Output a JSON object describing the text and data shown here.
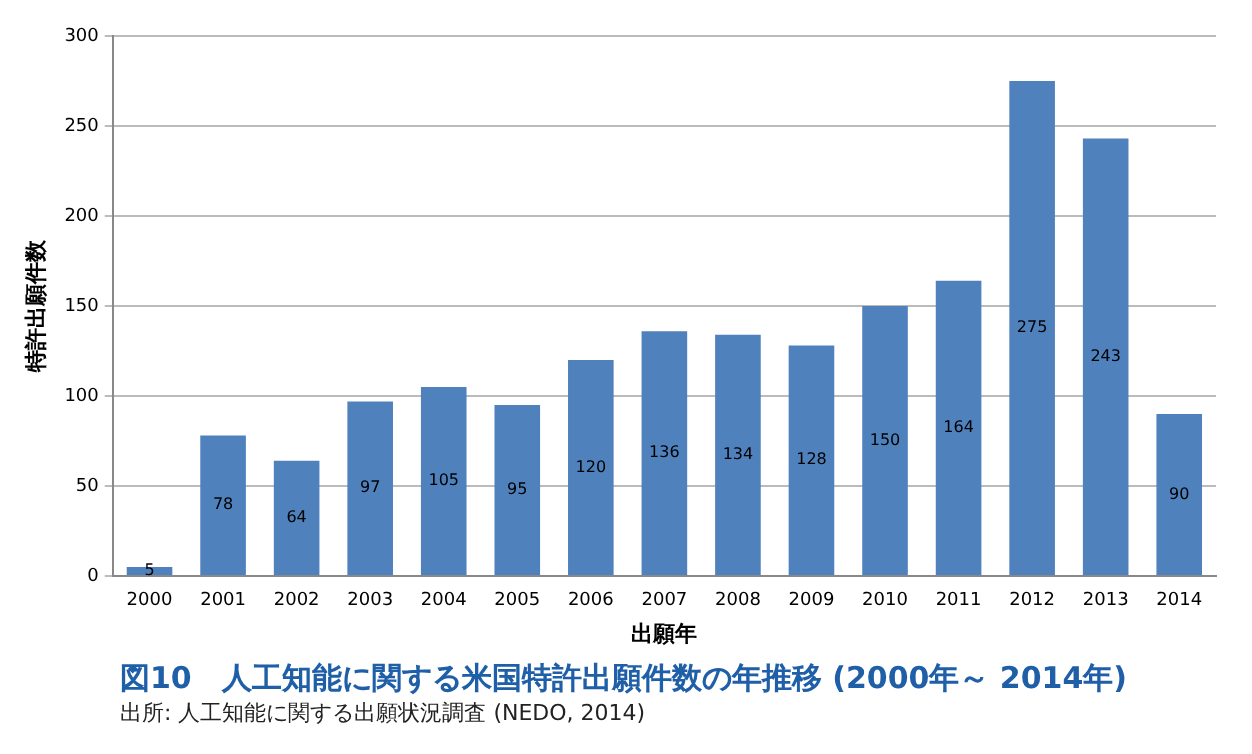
{
  "chart_data": {
    "type": "bar",
    "title": "図10　人工知能に関する米国特許出願件数の年推移 (2000年～ 2014年)",
    "xlabel": "出願年",
    "ylabel": "特許出願件数",
    "categories": [
      "2000",
      "2001",
      "2002",
      "2003",
      "2004",
      "2005",
      "2006",
      "2007",
      "2008",
      "2009",
      "2010",
      "2011",
      "2012",
      "2013",
      "2014"
    ],
    "values": [
      5,
      78,
      64,
      97,
      105,
      95,
      120,
      136,
      134,
      128,
      150,
      164,
      275,
      243,
      90
    ],
    "color": "#4f81bd",
    "ylim": [
      0,
      300
    ],
    "yticks": [
      0,
      50,
      100,
      150,
      200,
      250,
      300
    ],
    "grid": "y",
    "data_labels": true,
    "annotations": [
      "出所: 人工知能に関する出願状況調査 (NEDO, 2014)"
    ]
  }
}
